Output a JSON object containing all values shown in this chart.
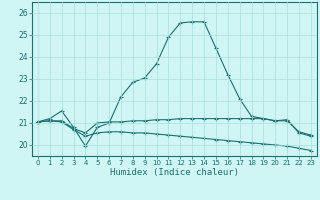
{
  "xlabel": "Humidex (Indice chaleur)",
  "background_color": "#cff5f5",
  "grid_color": "#aadddd",
  "line_color": "#1a7070",
  "xlim": [
    -0.5,
    23.5
  ],
  "ylim": [
    19.5,
    26.5
  ],
  "xticks": [
    0,
    1,
    2,
    3,
    4,
    5,
    6,
    7,
    8,
    9,
    10,
    11,
    12,
    13,
    14,
    15,
    16,
    17,
    18,
    19,
    20,
    21,
    22,
    23
  ],
  "yticks": [
    20,
    21,
    22,
    23,
    24,
    25,
    26
  ],
  "line1_x": [
    0,
    1,
    2,
    3,
    4,
    5,
    6,
    7,
    8,
    9,
    10,
    11,
    12,
    13,
    14,
    15,
    16,
    17,
    18,
    19,
    20,
    21,
    22,
    23
  ],
  "line1_y": [
    21.05,
    21.2,
    21.55,
    20.8,
    19.95,
    20.8,
    21.0,
    22.2,
    22.85,
    23.05,
    23.7,
    24.9,
    25.55,
    25.6,
    25.6,
    24.4,
    23.2,
    22.1,
    21.3,
    21.2,
    21.1,
    21.15,
    20.55,
    20.4
  ],
  "line2_x": [
    0,
    1,
    2,
    3,
    4,
    5,
    6,
    7,
    8,
    9,
    10,
    11,
    12,
    13,
    14,
    15,
    16,
    17,
    18,
    19,
    20,
    21,
    22,
    23
  ],
  "line2_y": [
    21.05,
    21.1,
    21.1,
    20.75,
    20.55,
    21.0,
    21.05,
    21.05,
    21.1,
    21.1,
    21.15,
    21.15,
    21.2,
    21.2,
    21.2,
    21.2,
    21.2,
    21.2,
    21.2,
    21.2,
    21.1,
    21.1,
    20.6,
    20.45
  ],
  "line3_x": [
    0,
    1,
    2,
    3,
    4,
    5,
    6,
    7,
    8,
    9,
    10,
    11,
    12,
    13,
    14,
    15,
    16,
    17,
    18,
    19,
    20,
    21,
    22,
    23
  ],
  "line3_y": [
    21.05,
    21.1,
    21.05,
    20.7,
    20.4,
    20.55,
    20.6,
    20.6,
    20.55,
    20.55,
    20.5,
    20.45,
    20.4,
    20.35,
    20.3,
    20.25,
    20.2,
    20.15,
    20.1,
    20.05,
    20.0,
    19.95,
    19.85,
    19.75
  ]
}
